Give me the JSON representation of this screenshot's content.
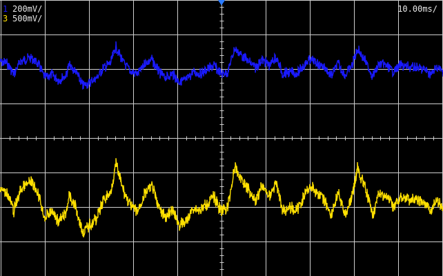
{
  "channels": [
    {
      "num": "1",
      "scale": "200mV/",
      "color": "#1a1aff"
    },
    {
      "num": "3",
      "scale": "500mV/",
      "color": "#ffe000"
    }
  ],
  "timebase": "10.00ms/",
  "colors": {
    "grid": "#d0d0d0",
    "background": "#000000",
    "trigger": "#2a7bff"
  }
}
